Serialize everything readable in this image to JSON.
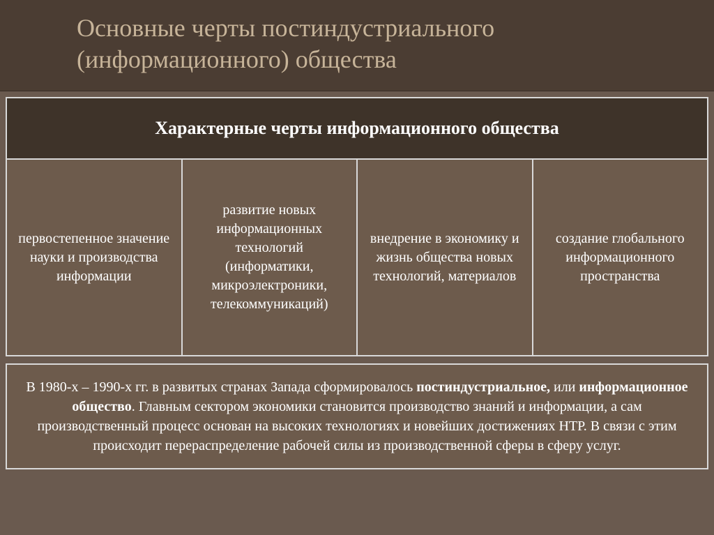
{
  "title": {
    "line1": "Основные черты постиндустриального",
    "line2": "(информационного) общества"
  },
  "table": {
    "header": "Характерные черты информационного общества",
    "cells": [
      "первостепенное значение науки и производства информации",
      "развитие новых информационных технологий (информатики, микроэлектрони­ки, телекоммуни­каций)",
      "внедрение в экономику и жизнь общества новых технологий, материалов",
      "создание глобального информационного пространства"
    ]
  },
  "footer": {
    "t1": "В 1980-х – 1990-х гг. в развитых странах Запада сформировалось ",
    "b1": "постиндуст­риальное, ",
    "t2": "или ",
    "b2": "информационное общество",
    "t3": ". Главным сектором экономики становится производство знаний и информации, а сам производственный про­цесс основан на высоких технологиях и новейших достижениях НТР. В связи с этим происходит перераспределение рабочей силы из производственной сферы в сферу услуг."
  },
  "colors": {
    "title_bg": "#4b3d33",
    "title_text": "#c7b499",
    "body_bg": "#6a5a4f",
    "header_row_bg": "#3e3329",
    "cell_bg": "#6d5b4c",
    "border": "#d9d9d9",
    "text": "#ffffff"
  }
}
